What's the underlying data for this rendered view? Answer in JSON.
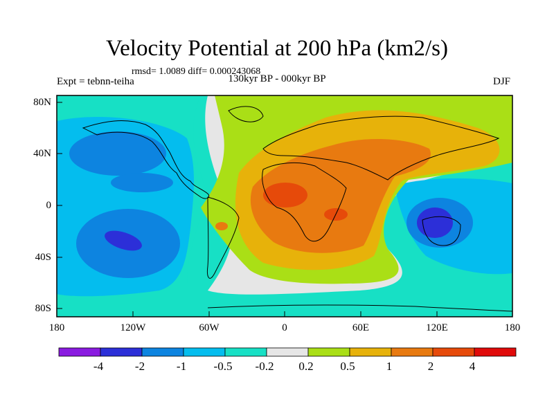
{
  "title": "Velocity Potential at 200 hPa (km2/s)",
  "stats_line": "rmsd= 1.0089 diff= 0.000243068",
  "experiment": "Expt = tebnn-teiha",
  "period": "130kyr BP - 000kyr BP",
  "season": "DJF",
  "lat_ticks": [
    "80N",
    "40N",
    "0",
    "40S",
    "80S"
  ],
  "lon_ticks": [
    "180",
    "120W",
    "60W",
    "0",
    "60E",
    "120E",
    "180"
  ],
  "colorbar": {
    "labels": [
      "-4",
      "-2",
      "-1",
      "-0.5",
      "-0.2",
      "0.2",
      "0.5",
      "1",
      "2",
      "4"
    ],
    "colors": [
      "#8a1be0",
      "#2c2fd8",
      "#0d84e0",
      "#04bdee",
      "#17e0c5",
      "#e6e6e6",
      "#aadf16",
      "#e7b20a",
      "#e87a10",
      "#e64a0a",
      "#e00a0a"
    ]
  }
}
